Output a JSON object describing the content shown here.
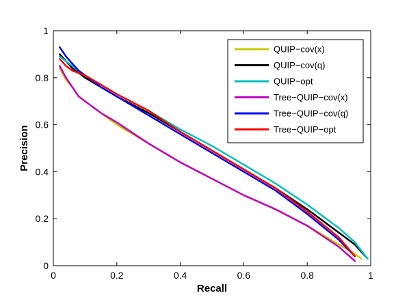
{
  "chart_data": {
    "type": "line",
    "title": "",
    "xlabel": "Recall",
    "ylabel": "Precision",
    "xlim": [
      0,
      1
    ],
    "ylim": [
      0,
      1
    ],
    "grid": false,
    "legend_position": "top-right",
    "x_ticks": [
      "0",
      "0.2",
      "0.4",
      "0.6",
      "0.8",
      "1"
    ],
    "y_ticks": [
      "0",
      "0.2",
      "0.4",
      "0.6",
      "0.8",
      "1"
    ],
    "series": [
      {
        "name": "QUIP−cov(x)",
        "color": "#c8c800",
        "x": [
          0.02,
          0.04,
          0.06,
          0.08,
          0.1,
          0.15,
          0.2,
          0.3,
          0.4,
          0.5,
          0.6,
          0.7,
          0.8,
          0.9,
          0.95,
          0.97
        ],
        "y": [
          0.84,
          0.79,
          0.76,
          0.72,
          0.7,
          0.65,
          0.6,
          0.52,
          0.44,
          0.37,
          0.3,
          0.24,
          0.17,
          0.09,
          0.05,
          0.03
        ]
      },
      {
        "name": "QUIP−cov(q)",
        "color": "#000000",
        "x": [
          0.02,
          0.04,
          0.06,
          0.08,
          0.1,
          0.15,
          0.2,
          0.3,
          0.4,
          0.5,
          0.6,
          0.7,
          0.8,
          0.9,
          0.95,
          0.99
        ],
        "y": [
          0.9,
          0.87,
          0.84,
          0.82,
          0.8,
          0.76,
          0.72,
          0.65,
          0.57,
          0.49,
          0.41,
          0.33,
          0.24,
          0.14,
          0.09,
          0.03
        ]
      },
      {
        "name": "QUIP−opt",
        "color": "#00c0c0",
        "x": [
          0.02,
          0.04,
          0.06,
          0.08,
          0.1,
          0.15,
          0.2,
          0.3,
          0.4,
          0.5,
          0.6,
          0.7,
          0.8,
          0.9,
          0.95,
          0.99
        ],
        "y": [
          0.89,
          0.87,
          0.85,
          0.83,
          0.81,
          0.77,
          0.73,
          0.66,
          0.58,
          0.51,
          0.43,
          0.35,
          0.26,
          0.16,
          0.1,
          0.03
        ]
      },
      {
        "name": "Tree−QUIP−cov(x)",
        "color": "#c000c0",
        "x": [
          0.02,
          0.04,
          0.06,
          0.08,
          0.1,
          0.15,
          0.2,
          0.3,
          0.4,
          0.5,
          0.6,
          0.7,
          0.8,
          0.9,
          0.95
        ],
        "y": [
          0.85,
          0.8,
          0.76,
          0.72,
          0.7,
          0.65,
          0.61,
          0.52,
          0.44,
          0.37,
          0.3,
          0.24,
          0.17,
          0.08,
          0.02
        ]
      },
      {
        "name": "Tree−QUIP−cov(q)",
        "color": "#0000ff",
        "x": [
          0.02,
          0.04,
          0.06,
          0.08,
          0.1,
          0.15,
          0.2,
          0.3,
          0.4,
          0.5,
          0.6,
          0.7,
          0.8,
          0.9,
          0.95
        ],
        "y": [
          0.93,
          0.89,
          0.86,
          0.83,
          0.81,
          0.76,
          0.72,
          0.64,
          0.56,
          0.48,
          0.4,
          0.32,
          0.22,
          0.11,
          0.04
        ]
      },
      {
        "name": "Tree−QUIP−opt",
        "color": "#ff0000",
        "x": [
          0.02,
          0.04,
          0.06,
          0.08,
          0.1,
          0.15,
          0.2,
          0.3,
          0.4,
          0.5,
          0.6,
          0.7,
          0.8,
          0.9,
          0.95
        ],
        "y": [
          0.88,
          0.85,
          0.83,
          0.82,
          0.81,
          0.77,
          0.73,
          0.66,
          0.57,
          0.49,
          0.41,
          0.33,
          0.23,
          0.12,
          0.04
        ]
      }
    ]
  }
}
